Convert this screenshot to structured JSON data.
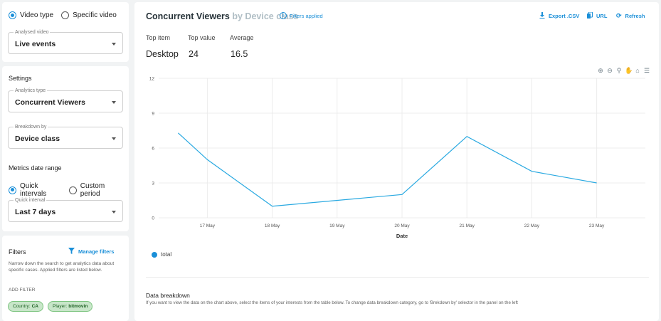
{
  "video_card": {
    "options": [
      {
        "label": "Video type",
        "selected": true
      },
      {
        "label": "Specific video",
        "selected": false
      }
    ],
    "analysed_video": {
      "label": "Analysed video",
      "value": "Live events"
    }
  },
  "settings": {
    "title": "Settings",
    "analytics_type": {
      "label": "Analytics type",
      "value": "Concurrent Viewers"
    },
    "breakdown_by": {
      "label": "Breakdown by",
      "value": "Device class"
    },
    "date_range_title": "Metrics date range",
    "date_options": [
      {
        "label": "Quick intervals",
        "selected": true
      },
      {
        "label": "Custom period",
        "selected": false
      }
    ],
    "quick_interval": {
      "label": "Quick interval",
      "value": "Last 7 days"
    }
  },
  "filters": {
    "title": "Filters",
    "manage_label": "Manage filters",
    "description": "Narrow down the search to get analytics data about specific cases. Applied filters are listed below.",
    "add_filter_label": "ADD FILTER",
    "chips": [
      {
        "key": "Country:",
        "value": "CA"
      },
      {
        "key": "Player:",
        "value": "bitmovin"
      }
    ]
  },
  "header": {
    "title": "Concurrent Viewers",
    "subtitle": "by Device class",
    "filters_applied": "Filters applied",
    "actions": {
      "export": "Export .CSV",
      "url": "URL",
      "refresh": "Refresh"
    }
  },
  "stats": {
    "top_item_label": "Top item",
    "top_item_value": "Desktop",
    "top_value_label": "Top value",
    "top_value_value": "24",
    "average_label": "Average",
    "average_value": "16.5"
  },
  "chart_data": {
    "type": "line",
    "categories": [
      "17 May",
      "18 May",
      "19 May",
      "20 May",
      "21 May",
      "22 May",
      "23 May"
    ],
    "series": [
      {
        "name": "total",
        "x": [
          16.55,
          17,
          18,
          20,
          21,
          22,
          23
        ],
        "values": [
          7.3,
          5,
          1,
          2,
          7,
          4,
          3
        ]
      }
    ],
    "xlabel": "Date",
    "ylabel": "",
    "ylim": [
      0,
      12
    ],
    "yticks": [
      0,
      3,
      6,
      9,
      12
    ],
    "grid": true,
    "legend_position": "bottom-left",
    "color": "#29a9e1"
  },
  "breakdown": {
    "title": "Data breakdown",
    "description": "If you want to view the data on the chart above, select the items of your interests from the table below. To change data breakdown category, go to 'Brekdown by' selector in the panel on the left"
  },
  "colors": {
    "accent": "#1a8fd8",
    "line": "#29a9e1",
    "chip_bg": "#c8e6c9"
  }
}
